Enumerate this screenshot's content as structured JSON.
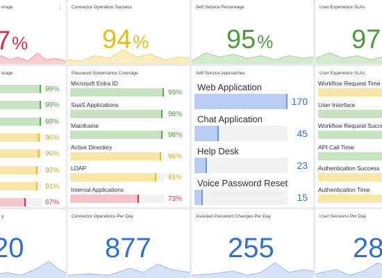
{
  "panels": {
    "p1": {
      "title": "erage",
      "value": "7",
      "unit": "%"
    },
    "p2": {
      "title": "Connector Operation Success",
      "value": "94",
      "unit": "%"
    },
    "p3": {
      "title": "Self Service Percentage",
      "value": "95",
      "unit": "%"
    },
    "p4": {
      "title": "User Experience SLAs",
      "value": "97",
      "unit": ""
    },
    "p5": {
      "title": "erage",
      "rows": [
        {
          "value": "99%",
          "pct": 0.99,
          "status": "g"
        },
        {
          "value": "99%",
          "pct": 0.99,
          "status": "g"
        },
        {
          "value": "98%",
          "pct": 0.98,
          "status": "g"
        },
        {
          "value": "96%",
          "pct": 0.96,
          "status": "y"
        },
        {
          "value": "96%",
          "pct": 0.96,
          "status": "y"
        },
        {
          "value": "92%",
          "pct": 0.92,
          "status": "y"
        },
        {
          "value": "91%",
          "pct": 0.91,
          "status": "y"
        },
        {
          "value": "67%",
          "pct": 0.67,
          "status": "r"
        }
      ]
    },
    "p6": {
      "title": "Password Governance Coverage",
      "rows": [
        {
          "label": "Microsoft Entra ID",
          "value": "99%",
          "pct": 0.99,
          "status": "g"
        },
        {
          "label": "SaaS Applications",
          "value": "98%",
          "pct": 0.98,
          "status": "g"
        },
        {
          "label": "Mainframe",
          "value": "98%",
          "pct": 0.98,
          "status": "g"
        },
        {
          "label": "Active Directory",
          "value": "96%",
          "pct": 0.96,
          "status": "y"
        },
        {
          "label": "LDAP",
          "value": "91%",
          "pct": 0.91,
          "status": "y"
        },
        {
          "label": "Internal Applications",
          "value": "73%",
          "pct": 0.73,
          "status": "r"
        }
      ]
    },
    "p7": {
      "title": "Self Service Approaches",
      "rows": [
        {
          "label": "Web Application",
          "value": "170",
          "count": 170
        },
        {
          "label": "Chat Application",
          "value": "45",
          "count": 45
        },
        {
          "label": "Help Desk",
          "value": "23",
          "count": 23
        },
        {
          "label": "Voice Password Reset",
          "value": "15",
          "count": 15
        }
      ]
    },
    "p8": {
      "title": "User Experience SLAs",
      "rows": [
        {
          "label": "Workflow Request Time",
          "status": "y"
        },
        {
          "label": "User Interface",
          "status": "g"
        },
        {
          "label": "Workflow Request Succe",
          "status": "g"
        },
        {
          "label": "API Call Time",
          "status": "g"
        },
        {
          "label": "Authentication Success",
          "status": "y"
        },
        {
          "label": "Authentication Time",
          "status": "y"
        }
      ]
    },
    "p9": {
      "title": "y",
      "value": "20"
    },
    "p10": {
      "title": "Connector Operations Per Day",
      "value": "877"
    },
    "p11": {
      "title": "Assisted Password Changes Per Day",
      "value": "255"
    },
    "p12": {
      "title": "User Sessions Per Day",
      "value": "28"
    }
  },
  "colors": {
    "green": "#4d9a3e",
    "yellow": "#e5c120",
    "red": "#d8314a",
    "blue": "#2f6fd1"
  },
  "icons": {
    "menu": "kebab-menu-icon"
  },
  "kebab_glyph": "⋮"
}
